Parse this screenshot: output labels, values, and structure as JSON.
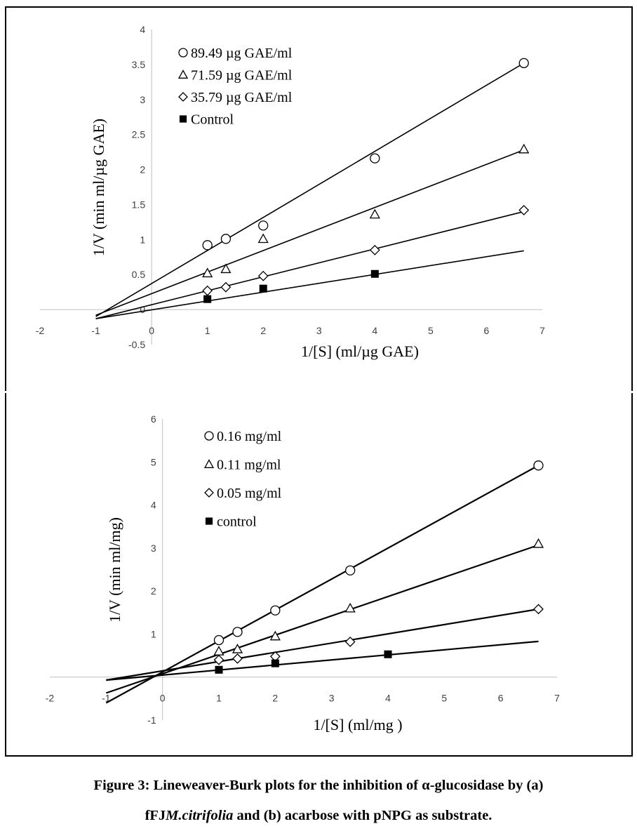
{
  "chart_data": [
    {
      "type": "line",
      "panel": "a",
      "xlabel": "1/[S]  (ml/µg GAE)",
      "ylabel": "1/V  (min ml/µg GAE)",
      "xlim": [
        -2,
        7
      ],
      "ylim": [
        -0.5,
        4
      ],
      "xticks": [
        -2,
        -1,
        0,
        1,
        2,
        3,
        4,
        5,
        6,
        7
      ],
      "yticks": [
        -0.5,
        0,
        0.5,
        1,
        1.5,
        2,
        2.5,
        3,
        3.5,
        4
      ],
      "ytick_labels": [
        "-0.5",
        "0",
        "0.5",
        "1",
        "1.5",
        "2",
        "2.5",
        "3",
        "3.5",
        "4"
      ],
      "grid": false,
      "legend_position": "top-left",
      "series": [
        {
          "name": "89.49 µg GAE/ml",
          "marker": "circle",
          "x": [
            1,
            1.33,
            2,
            4,
            6.67
          ],
          "y": [
            0.92,
            1.01,
            1.2,
            2.16,
            3.52
          ],
          "fit": [
            [
              -1,
              -0.1
            ],
            [
              6.67,
              3.52
            ]
          ]
        },
        {
          "name": "71.59 µg GAE/ml",
          "marker": "triangle",
          "x": [
            1,
            1.33,
            2,
            4,
            6.67
          ],
          "y": [
            0.52,
            0.58,
            1.01,
            1.36,
            2.29
          ],
          "fit": [
            [
              -1,
              -0.08
            ],
            [
              6.67,
              2.28
            ]
          ]
        },
        {
          "name": "35.79 µg GAE/ml",
          "marker": "diamond",
          "x": [
            1,
            1.33,
            2,
            4,
            6.67
          ],
          "y": [
            0.27,
            0.32,
            0.48,
            0.85,
            1.42
          ],
          "fit": [
            [
              -1,
              -0.13
            ],
            [
              6.67,
              1.4
            ]
          ]
        },
        {
          "name": "Control",
          "marker": "square",
          "x": [
            1,
            2,
            4
          ],
          "y": [
            0.15,
            0.3,
            0.51
          ],
          "fit": [
            [
              -1,
              -0.13
            ],
            [
              6.67,
              0.84
            ]
          ]
        }
      ]
    },
    {
      "type": "line",
      "panel": "b",
      "xlabel": "1/[S]  (ml/mg )",
      "ylabel": "1/V  (min ml/mg)",
      "xlim": [
        -2,
        7
      ],
      "ylim": [
        -1,
        6
      ],
      "xticks": [
        -2,
        -1,
        0,
        1,
        2,
        3,
        4,
        5,
        6,
        7
      ],
      "yticks": [
        -1,
        0,
        1,
        2,
        3,
        4,
        5,
        6
      ],
      "ytick_labels": [
        "-1",
        "",
        "1",
        "2",
        "3",
        "4",
        "5",
        "6"
      ],
      "grid": false,
      "legend_position": "top-left",
      "series": [
        {
          "name": "0.16 mg/ml",
          "marker": "circle",
          "x": [
            1,
            1.33,
            2,
            3.33,
            6.67
          ],
          "y": [
            0.86,
            1.05,
            1.55,
            2.48,
            4.92
          ],
          "fit": [
            [
              -1,
              -0.6
            ],
            [
              6.67,
              4.92
            ]
          ]
        },
        {
          "name": "0.11 mg/ml",
          "marker": "triangle",
          "x": [
            1,
            1.33,
            2,
            3.33,
            6.67
          ],
          "y": [
            0.6,
            0.65,
            0.95,
            1.6,
            3.1
          ],
          "fit": [
            [
              -1,
              -0.37
            ],
            [
              6.67,
              3.07
            ]
          ]
        },
        {
          "name": "0.05 mg/ml",
          "marker": "diamond",
          "x": [
            1,
            1.33,
            2,
            3.33,
            6.67
          ],
          "y": [
            0.4,
            0.43,
            0.48,
            0.82,
            1.58
          ],
          "fit": [
            [
              -1,
              -0.07
            ],
            [
              6.67,
              1.58
            ]
          ]
        },
        {
          "name": "control",
          "marker": "square",
          "x": [
            1,
            2,
            4
          ],
          "y": [
            0.17,
            0.32,
            0.53
          ],
          "fit": [
            [
              -1,
              -0.07
            ],
            [
              6.67,
              0.83
            ]
          ]
        }
      ]
    }
  ],
  "caption": {
    "line1": "Figure 3: Lineweaver-Burk plots for the inhibition of α-glucosidase by (a)",
    "line2_prefix": "fFJ",
    "line2_italic": "M.citrifolia",
    "line2_suffix": " and (b) acarbose with pNPG as substrate."
  }
}
